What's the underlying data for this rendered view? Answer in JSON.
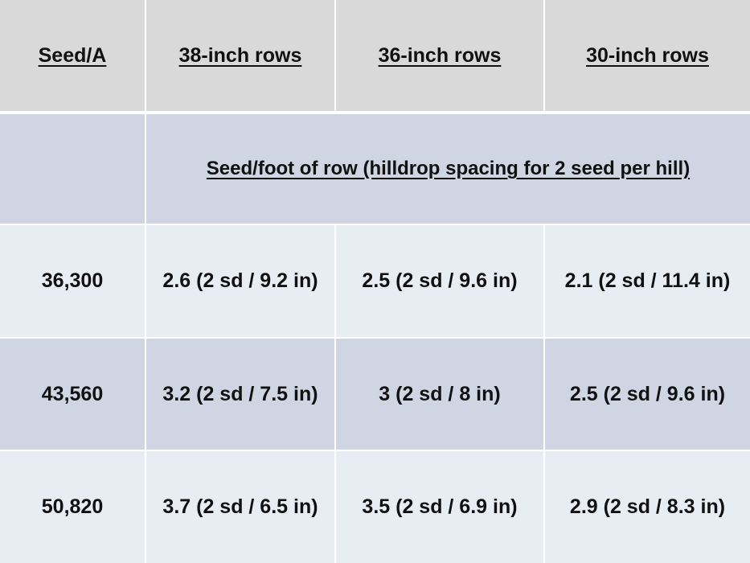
{
  "header": {
    "col0": "Seed/A",
    "col1": "38-inch rows",
    "col2": "36-inch rows",
    "col3": "30-inch rows"
  },
  "subheader": "Seed/foot of row (hilldrop spacing for 2 seed per hill)",
  "rows": [
    {
      "seed": "36,300",
      "c38": "2.6 (2 sd / 9.2 in)",
      "c36": "2.5 (2 sd / 9.6 in)",
      "c30": "2.1 (2 sd / 11.4 in)"
    },
    {
      "seed": "43,560",
      "c38": "3.2 (2 sd / 7.5 in)",
      "c36": "3 (2 sd / 8 in)",
      "c30": "2.5 (2 sd / 9.6 in)"
    },
    {
      "seed": "50,820",
      "c38": "3.7 (2 sd / 6.5 in)",
      "c36": "3.5 (2 sd / 6.9 in)",
      "c30": "2.9 (2 sd / 8.3 in)"
    }
  ],
  "colors": {
    "header_bg": "#d9d9d9",
    "band_dark": "#cfd5e3",
    "band_light": "#e8ecf3"
  }
}
